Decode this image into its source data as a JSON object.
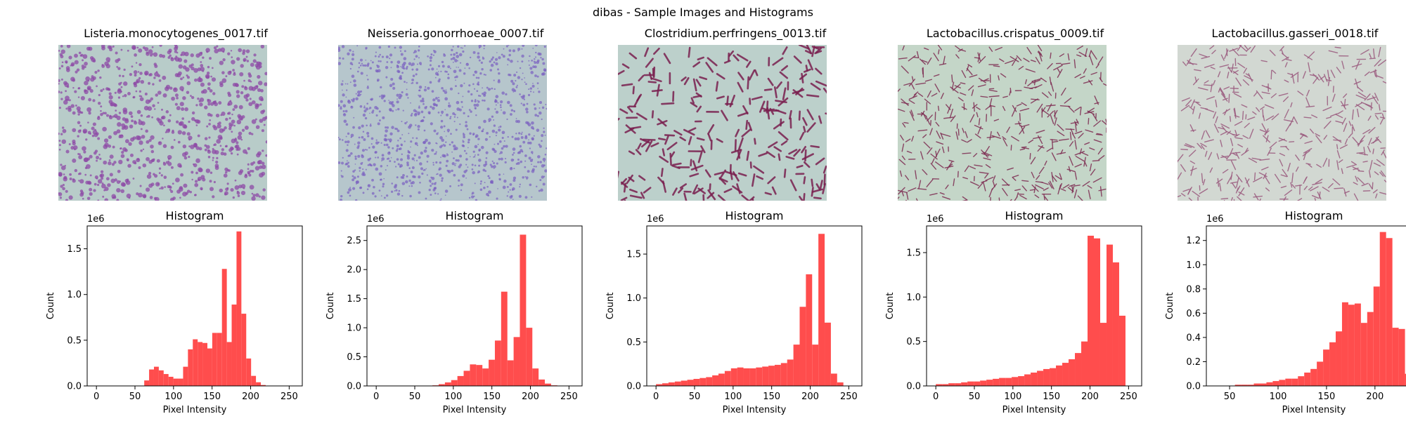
{
  "figure": {
    "title": "dibas - Sample Images and Histograms"
  },
  "colors": {
    "bar": "#ff4d4d",
    "background": "#ffffff"
  },
  "chart_data": [
    {
      "type": "bar",
      "image_title": "Listeria.monocytogenes_0017.tif",
      "image_background": "#b8ccc9",
      "image_stain": "#8e4aa6",
      "image_pattern": "network",
      "title": "Histogram",
      "xlabel": "Pixel Intensity",
      "ylabel": "Count",
      "y_multiplier_label": "1e6",
      "xlim": [
        -12,
        267
      ],
      "ylim": [
        0,
        1.75
      ],
      "xticks": [
        0,
        50,
        100,
        150,
        200,
        250
      ],
      "yticks": [
        0.0,
        0.5,
        1.0,
        1.5
      ],
      "ytick_labels": [
        "0.0",
        "0.5",
        "1.0",
        "1.5"
      ],
      "bin_edges": [
        62,
        68.3,
        74.6,
        80.9,
        87.2,
        93.5,
        99.8,
        106.1,
        112.4,
        118.7,
        125,
        131.3,
        137.6,
        143.9,
        150.2,
        156.5,
        162.8,
        169.1,
        175.4,
        181.7,
        188,
        194.3,
        200.6,
        206.9,
        213.2,
        219.5,
        225.8,
        232.1,
        238.4,
        244.7,
        251
      ],
      "values": [
        0.06,
        0.18,
        0.21,
        0.17,
        0.13,
        0.1,
        0.08,
        0.08,
        0.21,
        0.4,
        0.51,
        0.48,
        0.47,
        0.41,
        0.58,
        0.58,
        1.28,
        0.48,
        0.89,
        1.69,
        0.79,
        0.3,
        0.11,
        0.04,
        0.01,
        0.0,
        0.0,
        0.0,
        0.0,
        0.0
      ]
    },
    {
      "type": "bar",
      "image_title": "Neisseria.gonorrhoeae_0007.tif",
      "image_background": "#b6c6cc",
      "image_stain": "#7b5fc0",
      "image_pattern": "dots",
      "title": "Histogram",
      "xlabel": "Pixel Intensity",
      "ylabel": "Count",
      "y_multiplier_label": "1e6",
      "xlim": [
        -12,
        267
      ],
      "ylim": [
        0,
        2.75
      ],
      "xticks": [
        0,
        50,
        100,
        150,
        200,
        250
      ],
      "yticks": [
        0.0,
        0.5,
        1.0,
        1.5,
        2.0,
        2.5
      ],
      "ytick_labels": [
        "0.0",
        "0.5",
        "1.0",
        "1.5",
        "2.0",
        "2.5"
      ],
      "bin_edges": [
        0,
        8.1,
        16.2,
        24.3,
        32.4,
        40.5,
        48.6,
        56.7,
        64.8,
        72.9,
        81,
        89.1,
        97.2,
        105.3,
        113.4,
        121.5,
        129.6,
        137.7,
        145.8,
        153.9,
        162,
        170.1,
        178.2,
        186.3,
        194.4,
        202.5,
        210.6,
        218.7,
        226.8,
        234.9,
        243
      ],
      "values": [
        0.0,
        0.0,
        0.0,
        0.0,
        0.0,
        0.0,
        0.0,
        0.0,
        0.0,
        0.01,
        0.03,
        0.06,
        0.1,
        0.17,
        0.26,
        0.37,
        0.36,
        0.3,
        0.45,
        0.78,
        1.62,
        0.44,
        0.84,
        2.6,
        1.0,
        0.3,
        0.11,
        0.04,
        0.01,
        0.0
      ]
    },
    {
      "type": "bar",
      "image_title": "Clostridium.perfringens_0013.tif",
      "image_background": "#bcd0cb",
      "image_stain": "#7a1f4f",
      "image_pattern": "rods",
      "title": "Histogram",
      "xlabel": "Pixel Intensity",
      "ylabel": "Count",
      "y_multiplier_label": "1e6",
      "xlim": [
        -12,
        267
      ],
      "ylim": [
        0,
        1.82
      ],
      "xticks": [
        0,
        50,
        100,
        150,
        200,
        250
      ],
      "yticks": [
        0.0,
        0.5,
        1.0,
        1.5
      ],
      "ytick_labels": [
        "0.0",
        "0.5",
        "1.0",
        "1.5"
      ],
      "bin_edges": [
        0,
        8.1,
        16.2,
        24.3,
        32.4,
        40.5,
        48.6,
        56.7,
        64.8,
        72.9,
        81,
        89.1,
        97.2,
        105.3,
        113.4,
        121.5,
        129.6,
        137.7,
        145.8,
        153.9,
        162,
        170.1,
        178.2,
        186.3,
        194.4,
        202.5,
        210.6,
        218.7,
        226.8,
        234.9,
        243
      ],
      "values": [
        0.02,
        0.03,
        0.04,
        0.05,
        0.06,
        0.07,
        0.08,
        0.09,
        0.1,
        0.12,
        0.14,
        0.17,
        0.2,
        0.21,
        0.2,
        0.2,
        0.21,
        0.22,
        0.23,
        0.24,
        0.26,
        0.3,
        0.47,
        0.9,
        1.27,
        0.47,
        1.73,
        0.72,
        0.14,
        0.04
      ]
    },
    {
      "type": "bar",
      "image_title": "Lactobacillus.crispatus_0009.tif",
      "image_background": "#c4d6c8",
      "image_stain": "#7e2c52",
      "image_pattern": "rods-thin",
      "title": "Histogram",
      "xlabel": "Pixel Intensity",
      "ylabel": "Count",
      "y_multiplier_label": "1e6",
      "xlim": [
        -12,
        267
      ],
      "ylim": [
        0,
        1.8
      ],
      "xticks": [
        0,
        50,
        100,
        150,
        200,
        250
      ],
      "yticks": [
        0.0,
        0.5,
        1.0,
        1.5
      ],
      "ytick_labels": [
        "0.0",
        "0.5",
        "1.0",
        "1.5"
      ],
      "bin_edges": [
        0,
        8.2,
        16.4,
        24.6,
        32.8,
        41,
        49.2,
        57.4,
        65.6,
        73.8,
        82,
        90.2,
        98.4,
        106.6,
        114.8,
        123,
        131.2,
        139.4,
        147.6,
        155.8,
        164,
        172.2,
        180.4,
        188.6,
        196.8,
        205,
        213.2,
        221.4,
        229.6,
        237.8,
        246
      ],
      "values": [
        0.02,
        0.02,
        0.03,
        0.03,
        0.04,
        0.05,
        0.05,
        0.06,
        0.07,
        0.08,
        0.09,
        0.09,
        0.1,
        0.11,
        0.13,
        0.15,
        0.17,
        0.19,
        0.2,
        0.23,
        0.26,
        0.3,
        0.37,
        0.5,
        1.69,
        1.66,
        0.71,
        1.59,
        1.39,
        0.79
      ]
    },
    {
      "type": "bar",
      "image_title": "Lactobacillus.gasseri_0018.tif",
      "image_background": "#d2d8d2",
      "image_stain": "#9a5a7e",
      "image_pattern": "rods-thin",
      "title": "Histogram",
      "xlabel": "Pixel Intensity",
      "ylabel": "Count",
      "y_multiplier_label": "1e6",
      "xlim": [
        26,
        248
      ],
      "ylim": [
        0,
        1.32
      ],
      "xticks": [
        50,
        100,
        150,
        200
      ],
      "yticks": [
        0.0,
        0.2,
        0.4,
        0.6,
        0.8,
        1.0,
        1.2
      ],
      "ytick_labels": [
        "0.0",
        "0.2",
        "0.4",
        "0.6",
        "0.8",
        "1.0",
        "1.2"
      ],
      "bin_edges": [
        36,
        42.5,
        49,
        55.5,
        62,
        68.5,
        75,
        81.5,
        88,
        94.5,
        101,
        107.5,
        114,
        120.5,
        127,
        133.5,
        140,
        146.5,
        153,
        159.5,
        166,
        172.5,
        179,
        185.5,
        192,
        198.5,
        205,
        211.5,
        218,
        224.5,
        231,
        237.5
      ],
      "values": [
        0.0,
        0.0,
        0.0,
        0.01,
        0.01,
        0.01,
        0.02,
        0.02,
        0.03,
        0.04,
        0.05,
        0.06,
        0.06,
        0.08,
        0.11,
        0.14,
        0.2,
        0.3,
        0.36,
        0.45,
        0.69,
        0.67,
        0.68,
        0.52,
        0.61,
        0.82,
        1.27,
        1.22,
        0.48,
        0.47,
        0.1
      ]
    }
  ]
}
